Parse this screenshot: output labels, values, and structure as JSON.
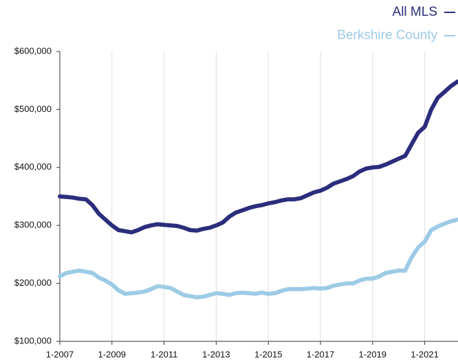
{
  "chart_data": {
    "type": "line",
    "categories": [
      "1-2007",
      "4-2007",
      "7-2007",
      "10-2007",
      "1-2008",
      "4-2008",
      "7-2008",
      "10-2008",
      "1-2009",
      "4-2009",
      "7-2009",
      "10-2009",
      "1-2010",
      "4-2010",
      "7-2010",
      "10-2010",
      "1-2011",
      "4-2011",
      "7-2011",
      "10-2011",
      "1-2012",
      "4-2012",
      "7-2012",
      "10-2012",
      "1-2013",
      "4-2013",
      "7-2013",
      "10-2013",
      "1-2014",
      "4-2014",
      "7-2014",
      "10-2014",
      "1-2015",
      "4-2015",
      "7-2015",
      "10-2015",
      "1-2016",
      "4-2016",
      "7-2016",
      "10-2016",
      "1-2017",
      "4-2017",
      "7-2017",
      "10-2017",
      "1-2018",
      "4-2018",
      "7-2018",
      "10-2018",
      "1-2019",
      "4-2019",
      "7-2019",
      "10-2019",
      "1-2020",
      "4-2020",
      "7-2020",
      "10-2020",
      "1-2021",
      "4-2021",
      "7-2021",
      "10-2021",
      "1-2022",
      "4-2022"
    ],
    "xtick_indices": [
      0,
      8,
      16,
      24,
      32,
      40,
      48,
      56
    ],
    "series": [
      {
        "name": "All MLS",
        "color": "#2b2d7c",
        "values": [
          350000,
          349000,
          348000,
          346000,
          345000,
          335000,
          320000,
          310000,
          300000,
          292000,
          290000,
          288000,
          292000,
          297000,
          300000,
          302000,
          301000,
          300000,
          299000,
          296000,
          292000,
          291000,
          294000,
          296000,
          300000,
          305000,
          315000,
          322000,
          326000,
          330000,
          333000,
          335000,
          338000,
          340000,
          343000,
          345000,
          345000,
          347000,
          352000,
          357000,
          360000,
          365000,
          372000,
          376000,
          380000,
          385000,
          393000,
          398000,
          400000,
          401000,
          405000,
          410000,
          415000,
          420000,
          440000,
          460000,
          470000,
          500000,
          520000,
          530000,
          540000,
          548000
        ]
      },
      {
        "name": "Berkshire County",
        "color": "#9dcbe6",
        "values": [
          212000,
          218000,
          220000,
          222000,
          220000,
          218000,
          210000,
          205000,
          198000,
          188000,
          182000,
          183000,
          184000,
          186000,
          190000,
          195000,
          194000,
          192000,
          186000,
          180000,
          178000,
          176000,
          177000,
          180000,
          183000,
          182000,
          180000,
          183000,
          184000,
          183000,
          182000,
          184000,
          182000,
          183000,
          187000,
          190000,
          190000,
          190000,
          191000,
          192000,
          191000,
          192000,
          196000,
          198000,
          200000,
          200000,
          205000,
          208000,
          208000,
          212000,
          218000,
          220000,
          222000,
          222000,
          245000,
          262000,
          272000,
          292000,
          298000,
          303000,
          307000,
          310000
        ]
      }
    ],
    "ylim": [
      100000,
      600000
    ],
    "yticks": [
      {
        "value": 100000,
        "label": "$100,000"
      },
      {
        "value": 200000,
        "label": "$200,000"
      },
      {
        "value": 300000,
        "label": "$300,000"
      },
      {
        "value": 400000,
        "label": "$400,000"
      },
      {
        "value": 500000,
        "label": "$500,000"
      },
      {
        "value": 600000,
        "label": "$600,000"
      }
    ],
    "grid": "x"
  }
}
